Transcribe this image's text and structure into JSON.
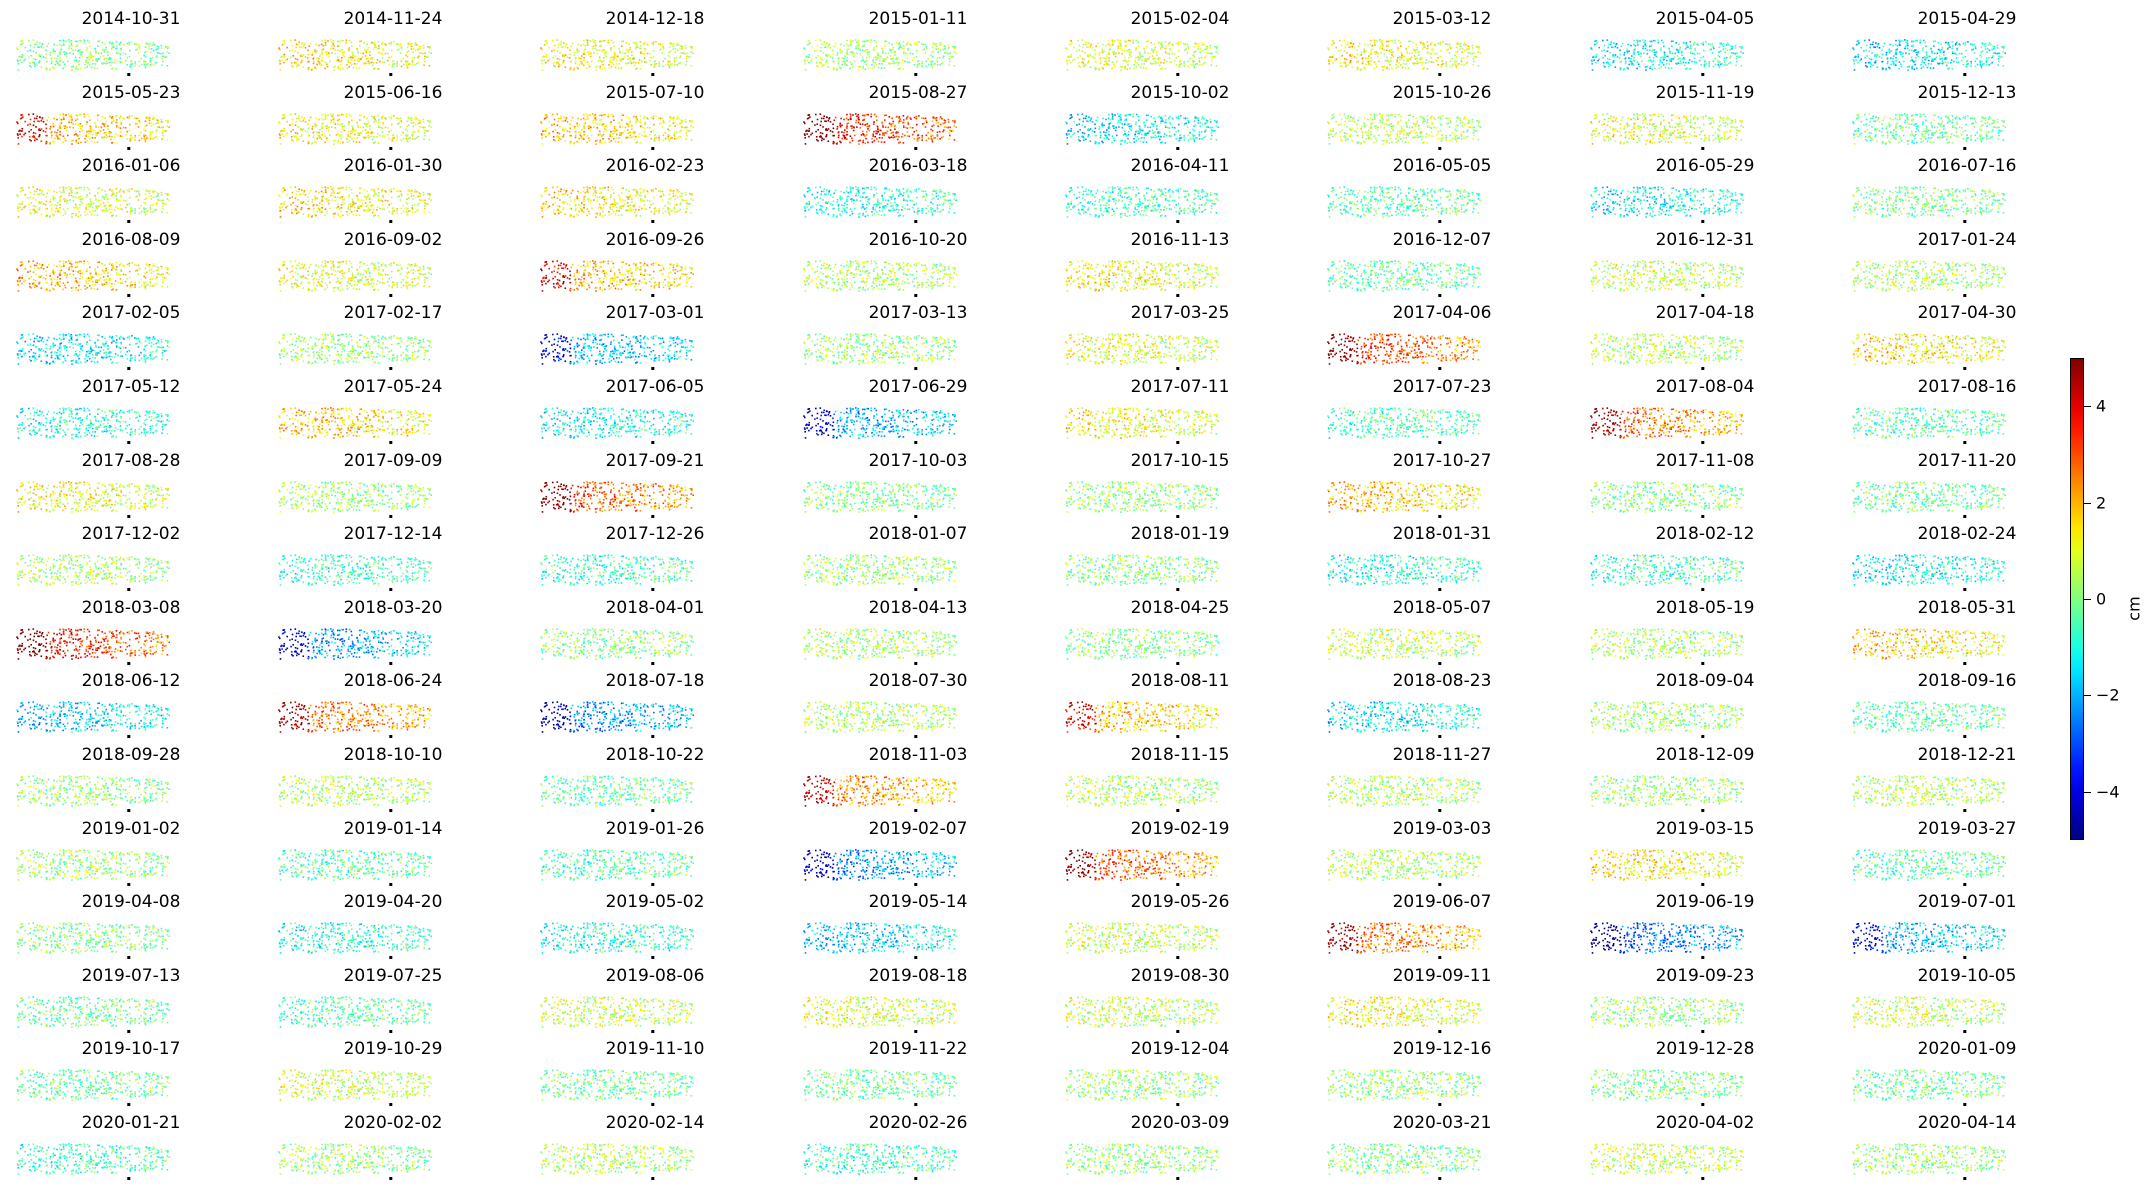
{
  "chart_data": {
    "type": "scatter",
    "layout": "small-multiples",
    "rows": 16,
    "cols": 8,
    "titles": [
      "2014-10-31",
      "2014-11-24",
      "2014-12-18",
      "2015-01-11",
      "2015-02-04",
      "2015-03-12",
      "2015-04-05",
      "2015-04-29",
      "2015-05-23",
      "2015-06-16",
      "2015-07-10",
      "2015-08-27",
      "2015-10-02",
      "2015-10-26",
      "2015-11-19",
      "2015-12-13",
      "2016-01-06",
      "2016-01-30",
      "2016-02-23",
      "2016-03-18",
      "2016-04-11",
      "2016-05-05",
      "2016-05-29",
      "2016-07-16",
      "2016-08-09",
      "2016-09-02",
      "2016-09-26",
      "2016-10-20",
      "2016-11-13",
      "2016-12-07",
      "2016-12-31",
      "2017-01-24",
      "2017-02-05",
      "2017-02-17",
      "2017-03-01",
      "2017-03-13",
      "2017-03-25",
      "2017-04-06",
      "2017-04-18",
      "2017-04-30",
      "2017-05-12",
      "2017-05-24",
      "2017-06-05",
      "2017-06-29",
      "2017-07-11",
      "2017-07-23",
      "2017-08-04",
      "2017-08-16",
      "2017-08-28",
      "2017-09-09",
      "2017-09-21",
      "2017-10-03",
      "2017-10-15",
      "2017-10-27",
      "2017-11-08",
      "2017-11-20",
      "2017-12-02",
      "2017-12-14",
      "2017-12-26",
      "2018-01-07",
      "2018-01-19",
      "2018-01-31",
      "2018-02-12",
      "2018-02-24",
      "2018-03-08",
      "2018-03-20",
      "2018-04-01",
      "2018-04-13",
      "2018-04-25",
      "2018-05-07",
      "2018-05-19",
      "2018-05-31",
      "2018-06-12",
      "2018-06-24",
      "2018-07-18",
      "2018-07-30",
      "2018-08-11",
      "2018-08-23",
      "2018-09-04",
      "2018-09-16",
      "2018-09-28",
      "2018-10-10",
      "2018-10-22",
      "2018-11-03",
      "2018-11-15",
      "2018-11-27",
      "2018-12-09",
      "2018-12-21",
      "2019-01-02",
      "2019-01-14",
      "2019-01-26",
      "2019-02-07",
      "2019-02-19",
      "2019-03-03",
      "2019-03-15",
      "2019-03-27",
      "2019-04-08",
      "2019-04-20",
      "2019-05-02",
      "2019-05-14",
      "2019-05-26",
      "2019-06-07",
      "2019-06-19",
      "2019-07-01",
      "2019-07-13",
      "2019-07-25",
      "2019-08-06",
      "2019-08-18",
      "2019-08-30",
      "2019-09-11",
      "2019-09-23",
      "2019-10-05",
      "2019-10-17",
      "2019-10-29",
      "2019-11-10",
      "2019-11-22",
      "2019-12-04",
      "2019-12-16",
      "2019-12-28",
      "2020-01-09",
      "2020-01-21",
      "2020-02-02",
      "2020-02-14",
      "2020-02-26",
      "2020-03-09",
      "2020-03-21",
      "2020-04-02",
      "2020-04-14"
    ],
    "panel_tint": [
      0.0,
      1.2,
      1.0,
      0.3,
      0.8,
      1.0,
      -1.0,
      -1.2,
      1.6,
      1.0,
      1.4,
      3.0,
      -1.2,
      0.5,
      0.8,
      -0.2,
      0.8,
      1.2,
      1.2,
      -0.8,
      -0.6,
      -0.4,
      -1.0,
      0.0,
      1.5,
      0.8,
      1.6,
      0.4,
      1.0,
      -0.3,
      0.6,
      0.4,
      -1.2,
      0.2,
      -1.6,
      0.2,
      0.8,
      2.6,
      0.4,
      1.2,
      -0.8,
      1.4,
      -1.0,
      -1.8,
      1.0,
      -0.5,
      2.2,
      -0.4,
      1.0,
      0.2,
      2.5,
      0.0,
      0.2,
      1.5,
      0.0,
      -0.2,
      0.4,
      -0.6,
      -0.6,
      0.2,
      0.0,
      -0.8,
      -0.6,
      -1.0,
      3.0,
      -1.8,
      0.0,
      0.4,
      0.0,
      0.6,
      0.4,
      1.4,
      -1.4,
      2.2,
      -2.0,
      0.4,
      1.6,
      -1.2,
      0.2,
      -0.4,
      0.2,
      0.4,
      -0.2,
      2.0,
      0.4,
      0.4,
      0.2,
      0.4,
      0.2,
      -0.4,
      -0.4,
      -2.0,
      2.4,
      0.4,
      1.2,
      -0.4,
      0.0,
      -0.8,
      -0.8,
      -1.4,
      0.6,
      2.2,
      -2.4,
      -1.6,
      -0.2,
      -0.4,
      0.6,
      0.8,
      0.6,
      1.0,
      0.2,
      0.6,
      -0.2,
      0.6,
      -0.2,
      -0.2,
      0.2,
      0.2,
      0.0,
      -0.2,
      -0.6,
      0.2,
      0.4,
      -0.6,
      0.2,
      0.0,
      0.6,
      0.2
    ],
    "colorbar": {
      "label": "cm",
      "vmin": -5,
      "vmax": 5,
      "ticks": [
        -4,
        -2,
        0,
        2,
        4
      ],
      "tick_labels": [
        "−4",
        "−2",
        "0",
        "2",
        "4"
      ],
      "colormap": "jet"
    },
    "grid": false,
    "axes": "off"
  }
}
